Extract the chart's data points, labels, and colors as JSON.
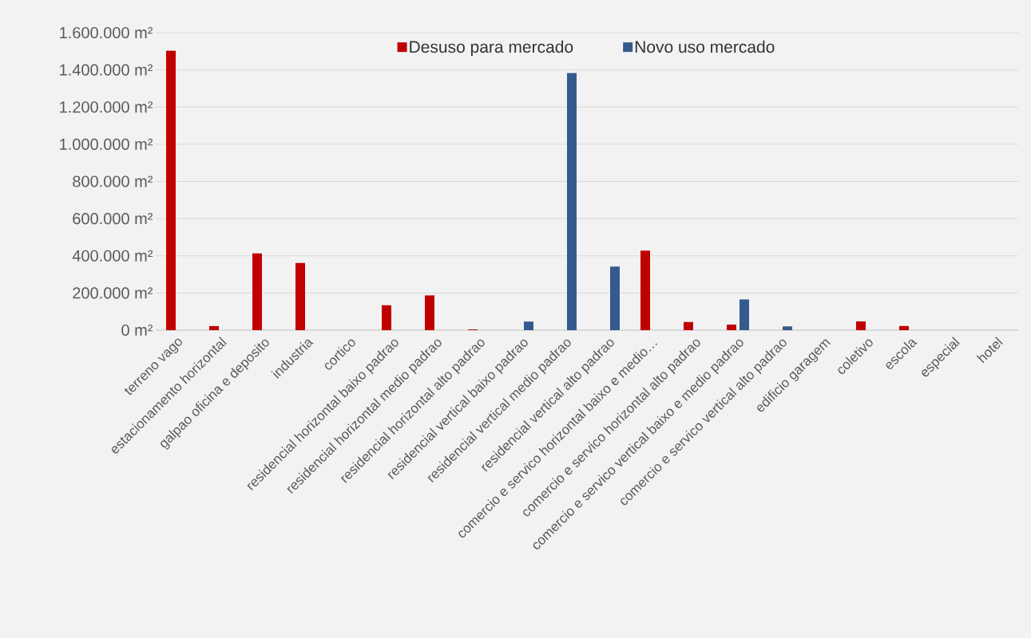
{
  "chart_data": {
    "type": "bar",
    "categories": [
      "terreno vago",
      "estacionamento horizontal",
      "galpao oficina e deposito",
      "industria",
      "cortico",
      "residencial horizontal baixo padrao",
      "residencial horizontal medio padrao",
      "residencial horizontal alto padrao",
      "residencial vertical baixo padrao",
      "residencial vertical medio padrao",
      "residencial vertical alto padrao",
      "comercio e servico horizontal baixo e medio…",
      "comercio e servico horizontal alto padrao",
      "comercio e servico vertical baixo e medio padrao",
      "comercio e servico vertical alto padrao",
      "edificio garagem",
      "coletivo",
      "escola",
      "especial",
      "hotel"
    ],
    "series": [
      {
        "name": "Desuso para mercado",
        "color": "#c00000",
        "values": [
          1503000,
          22000,
          413000,
          361000,
          null,
          134000,
          187000,
          4000,
          null,
          null,
          null,
          428000,
          44000,
          30000,
          null,
          null,
          47000,
          22000,
          null,
          null
        ]
      },
      {
        "name": "Novo uso mercado",
        "color": "#335b8e",
        "values": [
          null,
          null,
          null,
          null,
          null,
          null,
          null,
          null,
          46000,
          1383000,
          342000,
          null,
          null,
          165000,
          20000,
          null,
          null,
          null,
          null,
          null
        ]
      }
    ],
    "ylim": [
      0,
      1600000
    ],
    "yticks": [
      {
        "value": 0,
        "label": "0 m²"
      },
      {
        "value": 200000,
        "label": "200.000 m²"
      },
      {
        "value": 400000,
        "label": "400.000 m²"
      },
      {
        "value": 600000,
        "label": "600.000 m²"
      },
      {
        "value": 800000,
        "label": "800.000 m²"
      },
      {
        "value": 1000000,
        "label": "1.000.000 m²"
      },
      {
        "value": 1200000,
        "label": "1.200.000 m²"
      },
      {
        "value": 1400000,
        "label": "1.400.000 m²"
      },
      {
        "value": 1600000,
        "label": "1.600.000 m²"
      }
    ],
    "grid": "y",
    "legend": "top"
  }
}
